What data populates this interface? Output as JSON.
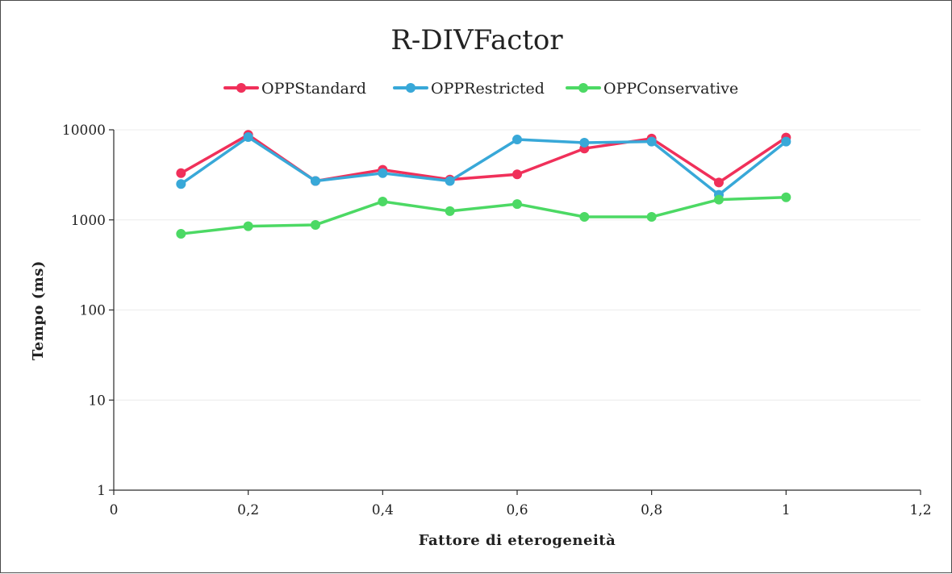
{
  "chart_data": {
    "type": "line",
    "title": "R-DIVFactor",
    "xlabel": "Fattore di eterogeneità",
    "ylabel": "Tempo (ms)",
    "x": [
      0.1,
      0.2,
      0.3,
      0.4,
      0.5,
      0.6,
      0.7,
      0.8,
      0.9,
      1.0
    ],
    "xlim": [
      0,
      1.2
    ],
    "ylim": [
      1,
      10000
    ],
    "yscale": "log",
    "xticks": [
      0,
      0.2,
      0.4,
      0.6,
      0.8,
      1,
      1.2
    ],
    "xtick_labels": [
      "0",
      "0,2",
      "0,4",
      "0,6",
      "0,8",
      "1",
      "1,2"
    ],
    "yticks": [
      1,
      10,
      100,
      1000,
      10000
    ],
    "ytick_labels": [
      "1",
      "10",
      "100",
      "1000",
      "10000"
    ],
    "grid": true,
    "legend_position": "top",
    "series": [
      {
        "name": "OPPStandard",
        "color": "#f0305a",
        "values": [
          3300,
          8800,
          2700,
          3600,
          2800,
          3200,
          6200,
          8000,
          2600,
          8200
        ]
      },
      {
        "name": "OPPRestricted",
        "color": "#38a8d8",
        "values": [
          2500,
          8300,
          2700,
          3300,
          2700,
          7800,
          7200,
          7400,
          1900,
          7400
        ]
      },
      {
        "name": "OPPConservative",
        "color": "#4cd964",
        "values": [
          700,
          850,
          880,
          1600,
          1250,
          1500,
          1080,
          1080,
          1680,
          1780
        ]
      }
    ]
  }
}
